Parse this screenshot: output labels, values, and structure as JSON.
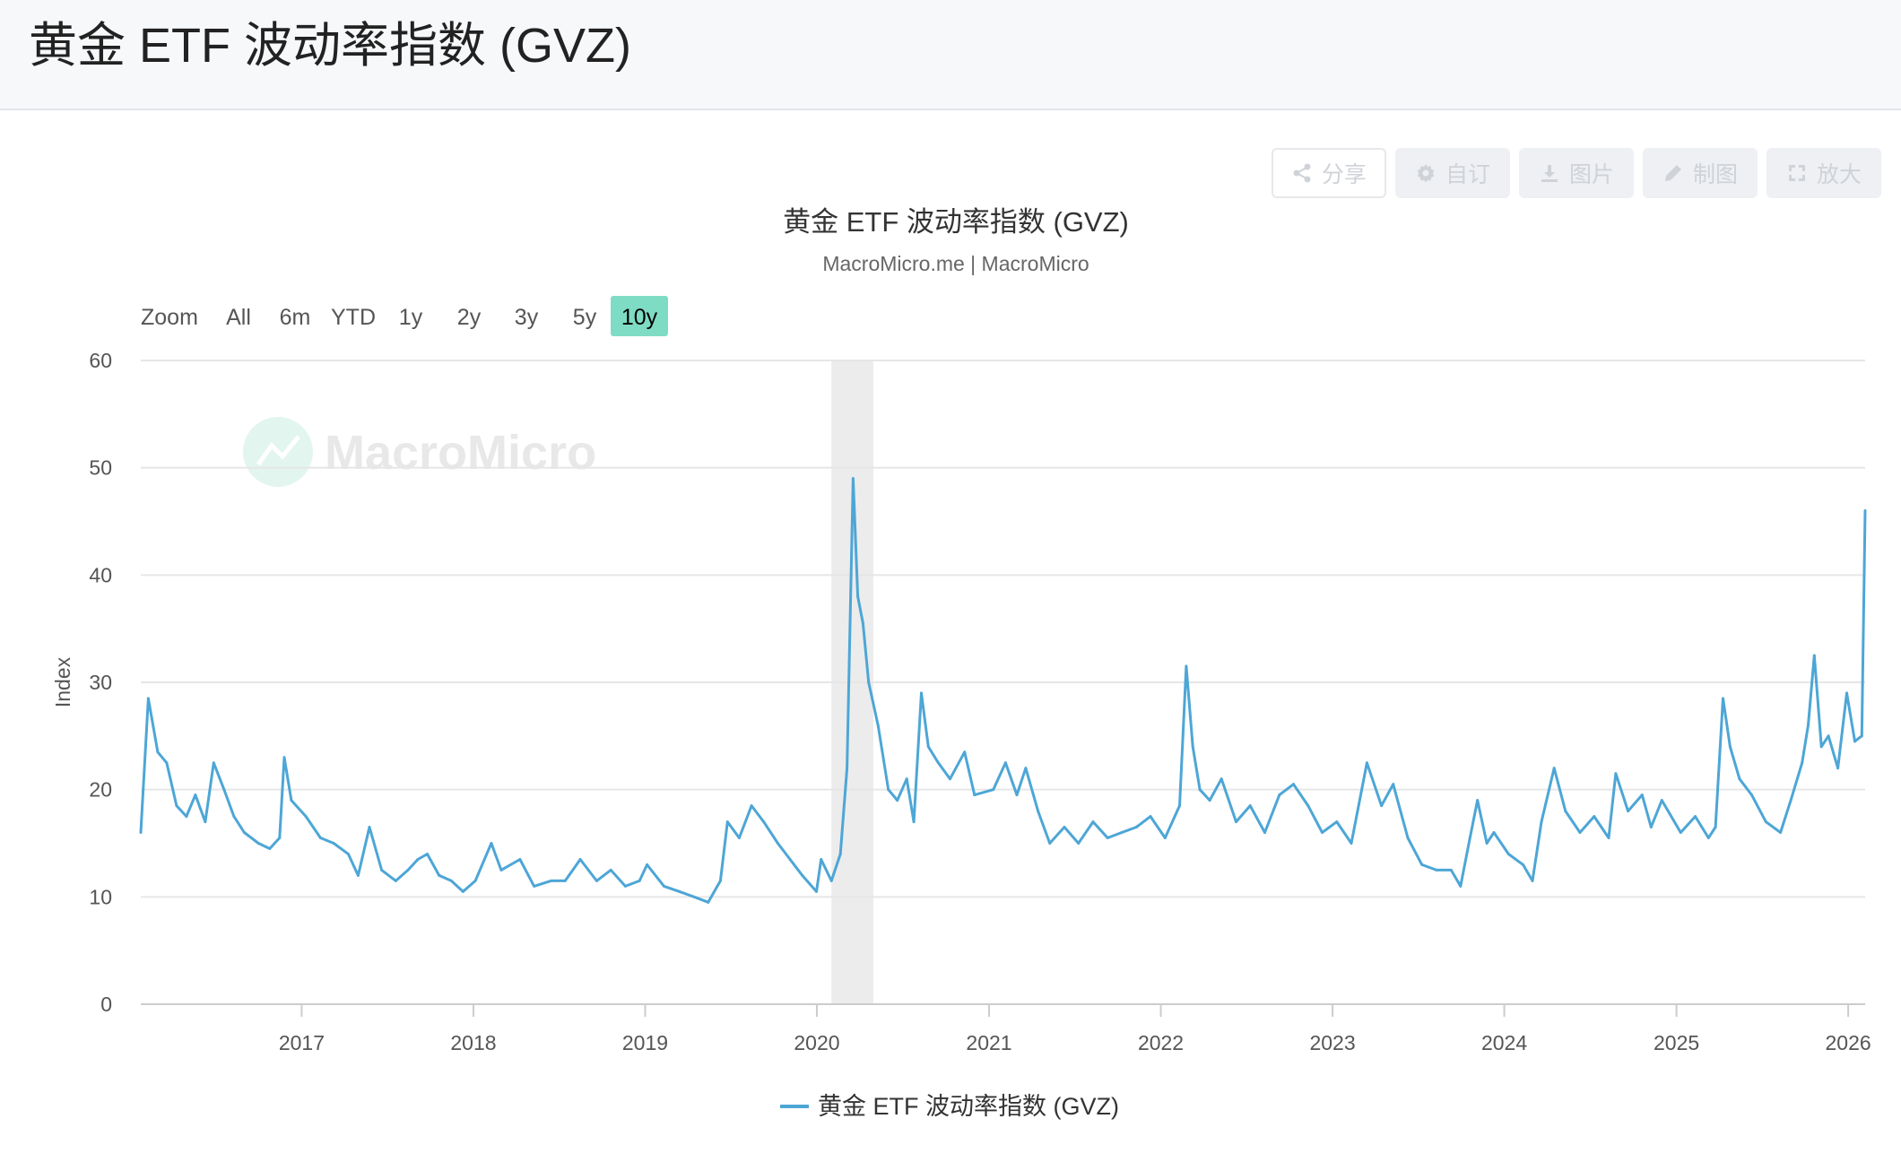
{
  "page": {
    "title": "黄金 ETF 波动率指数 (GVZ)"
  },
  "toolbar": [
    {
      "label": "分享",
      "icon": "share-icon"
    },
    {
      "label": "自订",
      "icon": "gear-icon"
    },
    {
      "label": "图片",
      "icon": "download-icon"
    },
    {
      "label": "制图",
      "icon": "pencil-icon"
    },
    {
      "label": "放大",
      "icon": "expand-icon"
    }
  ],
  "range_selector": {
    "zoom_label": "Zoom",
    "buttons": [
      "All",
      "6m",
      "YTD",
      "1y",
      "2y",
      "3y",
      "5y",
      "10y"
    ],
    "selected": "10y"
  },
  "watermark": "MacroMicro",
  "colors": {
    "series": "#4da6d6",
    "selected_range": "#7fdcc4",
    "recession_band": "#ececec",
    "grid": "#e6e6e6"
  },
  "chart_data": {
    "type": "line",
    "title": "黄金 ETF 波动率指数 (GVZ)",
    "subtitle": "MacroMicro.me | MacroMicro",
    "ylabel": "Index",
    "xlabel": "",
    "ylim": [
      0,
      60
    ],
    "yticks": [
      0,
      10,
      20,
      30,
      40,
      50,
      60
    ],
    "xlim": [
      "2016-01-25",
      "2026-02-06"
    ],
    "xticks": [
      "2017",
      "2018",
      "2019",
      "2020",
      "2021",
      "2022",
      "2023",
      "2024",
      "2025",
      "2026"
    ],
    "shaded_periods": [
      {
        "from": "2020-02-01",
        "to": "2020-04-30"
      }
    ],
    "legend": {
      "position": "bottom-center"
    },
    "grid": true,
    "series": [
      {
        "name": "黄金 ETF 波动率指数 (GVZ)",
        "points": [
          [
            "2016-01-25",
            16.0
          ],
          [
            "2016-02-10",
            28.5
          ],
          [
            "2016-03-01",
            23.5
          ],
          [
            "2016-03-20",
            22.5
          ],
          [
            "2016-04-10",
            18.5
          ],
          [
            "2016-05-01",
            17.5
          ],
          [
            "2016-05-20",
            19.5
          ],
          [
            "2016-06-10",
            17.0
          ],
          [
            "2016-06-28",
            22.5
          ],
          [
            "2016-07-20",
            20.0
          ],
          [
            "2016-08-10",
            17.5
          ],
          [
            "2016-09-01",
            16.0
          ],
          [
            "2016-10-01",
            15.0
          ],
          [
            "2016-10-25",
            14.5
          ],
          [
            "2016-11-15",
            15.5
          ],
          [
            "2016-11-25",
            23.0
          ],
          [
            "2016-12-10",
            19.0
          ],
          [
            "2017-01-10",
            17.5
          ],
          [
            "2017-02-10",
            15.5
          ],
          [
            "2017-03-10",
            15.0
          ],
          [
            "2017-04-10",
            14.0
          ],
          [
            "2017-05-01",
            12.0
          ],
          [
            "2017-05-25",
            16.5
          ],
          [
            "2017-06-20",
            12.5
          ],
          [
            "2017-07-20",
            11.5
          ],
          [
            "2017-08-15",
            12.5
          ],
          [
            "2017-09-05",
            13.5
          ],
          [
            "2017-09-25",
            14.0
          ],
          [
            "2017-10-20",
            12.0
          ],
          [
            "2017-11-15",
            11.5
          ],
          [
            "2017-12-10",
            10.5
          ],
          [
            "2018-01-05",
            11.5
          ],
          [
            "2018-02-08",
            15.0
          ],
          [
            "2018-03-01",
            12.5
          ],
          [
            "2018-04-10",
            13.5
          ],
          [
            "2018-05-10",
            11.0
          ],
          [
            "2018-06-15",
            11.5
          ],
          [
            "2018-07-15",
            11.5
          ],
          [
            "2018-08-16",
            13.5
          ],
          [
            "2018-09-20",
            11.5
          ],
          [
            "2018-10-20",
            12.5
          ],
          [
            "2018-11-20",
            11.0
          ],
          [
            "2018-12-20",
            11.5
          ],
          [
            "2019-01-05",
            13.0
          ],
          [
            "2019-02-10",
            11.0
          ],
          [
            "2019-03-15",
            10.5
          ],
          [
            "2019-04-15",
            10.0
          ],
          [
            "2019-05-15",
            9.5
          ],
          [
            "2019-06-10",
            11.5
          ],
          [
            "2019-06-25",
            17.0
          ],
          [
            "2019-07-20",
            15.5
          ],
          [
            "2019-08-15",
            18.5
          ],
          [
            "2019-09-10",
            17.0
          ],
          [
            "2019-10-10",
            15.0
          ],
          [
            "2019-11-05",
            13.5
          ],
          [
            "2019-12-01",
            12.0
          ],
          [
            "2019-12-31",
            10.5
          ],
          [
            "2020-01-10",
            13.5
          ],
          [
            "2020-02-01",
            11.5
          ],
          [
            "2020-02-20",
            14.0
          ],
          [
            "2020-03-05",
            22.0
          ],
          [
            "2020-03-18",
            49.0
          ],
          [
            "2020-03-28",
            38.0
          ],
          [
            "2020-04-08",
            35.5
          ],
          [
            "2020-04-20",
            30.0
          ],
          [
            "2020-05-10",
            26.0
          ],
          [
            "2020-06-01",
            20.0
          ],
          [
            "2020-06-20",
            19.0
          ],
          [
            "2020-07-10",
            21.0
          ],
          [
            "2020-07-25",
            17.0
          ],
          [
            "2020-08-10",
            29.0
          ],
          [
            "2020-08-25",
            24.0
          ],
          [
            "2020-09-15",
            22.5
          ],
          [
            "2020-10-10",
            21.0
          ],
          [
            "2020-11-10",
            23.5
          ],
          [
            "2020-12-01",
            19.5
          ],
          [
            "2021-01-10",
            20.0
          ],
          [
            "2021-02-05",
            22.5
          ],
          [
            "2021-03-01",
            19.5
          ],
          [
            "2021-03-20",
            22.0
          ],
          [
            "2021-04-15",
            18.0
          ],
          [
            "2021-05-10",
            15.0
          ],
          [
            "2021-06-10",
            16.5
          ],
          [
            "2021-07-10",
            15.0
          ],
          [
            "2021-08-10",
            17.0
          ],
          [
            "2021-09-10",
            15.5
          ],
          [
            "2021-10-10",
            16.0
          ],
          [
            "2021-11-10",
            16.5
          ],
          [
            "2021-12-10",
            17.5
          ],
          [
            "2022-01-10",
            15.5
          ],
          [
            "2022-02-10",
            18.5
          ],
          [
            "2022-02-24",
            31.5
          ],
          [
            "2022-03-10",
            24.0
          ],
          [
            "2022-03-25",
            20.0
          ],
          [
            "2022-04-15",
            19.0
          ],
          [
            "2022-05-10",
            21.0
          ],
          [
            "2022-06-10",
            17.0
          ],
          [
            "2022-07-10",
            18.5
          ],
          [
            "2022-08-10",
            16.0
          ],
          [
            "2022-09-10",
            19.5
          ],
          [
            "2022-10-10",
            20.5
          ],
          [
            "2022-11-10",
            18.5
          ],
          [
            "2022-12-10",
            16.0
          ],
          [
            "2023-01-10",
            17.0
          ],
          [
            "2023-02-10",
            15.0
          ],
          [
            "2023-03-15",
            22.5
          ],
          [
            "2023-04-15",
            18.5
          ],
          [
            "2023-05-10",
            20.5
          ],
          [
            "2023-06-10",
            15.5
          ],
          [
            "2023-07-10",
            13.0
          ],
          [
            "2023-08-10",
            12.5
          ],
          [
            "2023-09-10",
            12.5
          ],
          [
            "2023-09-30",
            11.0
          ],
          [
            "2023-10-20",
            15.5
          ],
          [
            "2023-11-05",
            19.0
          ],
          [
            "2023-11-25",
            15.0
          ],
          [
            "2023-12-10",
            16.0
          ],
          [
            "2024-01-10",
            14.0
          ],
          [
            "2024-02-10",
            13.0
          ],
          [
            "2024-03-01",
            11.5
          ],
          [
            "2024-03-20",
            17.0
          ],
          [
            "2024-04-16",
            22.0
          ],
          [
            "2024-05-10",
            18.0
          ],
          [
            "2024-06-10",
            16.0
          ],
          [
            "2024-07-10",
            17.5
          ],
          [
            "2024-08-10",
            15.5
          ],
          [
            "2024-08-25",
            21.5
          ],
          [
            "2024-09-20",
            18.0
          ],
          [
            "2024-10-20",
            19.5
          ],
          [
            "2024-11-08",
            16.5
          ],
          [
            "2024-12-01",
            19.0
          ],
          [
            "2025-01-10",
            16.0
          ],
          [
            "2025-02-10",
            17.5
          ],
          [
            "2025-03-10",
            15.5
          ],
          [
            "2025-03-25",
            16.5
          ],
          [
            "2025-04-10",
            28.5
          ],
          [
            "2025-04-25",
            24.0
          ],
          [
            "2025-05-15",
            21.0
          ],
          [
            "2025-06-10",
            19.5
          ],
          [
            "2025-07-10",
            17.0
          ],
          [
            "2025-08-10",
            16.0
          ],
          [
            "2025-09-01",
            19.0
          ],
          [
            "2025-09-25",
            22.5
          ],
          [
            "2025-10-08",
            26.0
          ],
          [
            "2025-10-21",
            32.5
          ],
          [
            "2025-11-05",
            24.0
          ],
          [
            "2025-11-20",
            25.0
          ],
          [
            "2025-12-10",
            22.0
          ],
          [
            "2025-12-29",
            29.0
          ],
          [
            "2026-01-15",
            24.5
          ],
          [
            "2026-01-30",
            25.0
          ],
          [
            "2026-02-06",
            46.0
          ]
        ]
      }
    ]
  }
}
